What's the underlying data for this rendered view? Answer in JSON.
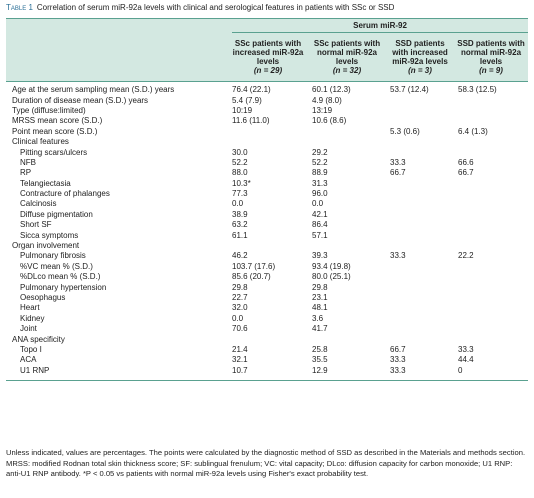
{
  "caption": {
    "label": "Table 1",
    "text": "Correlation of serum miR-92a levels with clinical and serological features in patients with SSc or SSD"
  },
  "table": {
    "group_header": "Serum miR-92",
    "columns": [
      {
        "label": "SSc patients with increased miR-92a levels",
        "n": "(n = 29)"
      },
      {
        "label": "SSc patients with normal miR-92a levels",
        "n": "(n = 32)"
      },
      {
        "label": "SSD patients with increased miR-92a levels",
        "n": "(n = 3)"
      },
      {
        "label": "SSD patients with normal miR-92a levels",
        "n": "(n = 9)"
      }
    ],
    "rows": [
      [
        "Age at the serum sampling mean (S.D.) years",
        "76.4 (22.1)",
        "60.1 (12.3)",
        "53.7 (12.4)",
        "58.3 (12.5)"
      ],
      [
        "Duration of disease mean (S.D.) years",
        "5.4 (7.9)",
        "4.9 (8.0)",
        null,
        null
      ],
      [
        "Type (diffuse:limited)",
        "10:19",
        "13:19",
        null,
        null
      ],
      [
        "MRSS mean score (S.D.)",
        "11.6 (11.0)",
        "10.6 (8.6)",
        null,
        null
      ],
      [
        "Point mean score (S.D.)",
        null,
        null,
        "5.3 (0.6)",
        "6.4 (1.3)"
      ],
      [
        "Clinical features"
      ],
      [
        "Pitting scars/ulcers",
        "30.0",
        "29.2",
        null,
        null
      ],
      [
        "NFB",
        "52.2",
        "52.2",
        "33.3",
        "66.6"
      ],
      [
        "RP",
        "88.0",
        "88.9",
        "66.7",
        "66.7"
      ],
      [
        "Telangiectasia",
        "10.3*",
        "31.3",
        null,
        null
      ],
      [
        "Contracture of phalanges",
        "77.3",
        "96.0",
        null,
        null
      ],
      [
        "Calcinosis",
        "0.0",
        "0.0",
        null,
        null
      ],
      [
        "Diffuse pigmentation",
        "38.9",
        "42.1",
        null,
        null
      ],
      [
        "Short SF",
        "63.2",
        "86.4",
        null,
        null
      ],
      [
        "Sicca symptoms",
        "61.1",
        "57.1",
        null,
        null
      ],
      [
        "Organ involvement"
      ],
      [
        "Pulmonary fibrosis",
        "46.2",
        "39.3",
        "33.3",
        "22.2"
      ],
      [
        "%VC mean % (S.D.)",
        "103.7 (17.6)",
        "93.4 (19.8)",
        null,
        null
      ],
      [
        "%DLco mean % (S.D.)",
        "85.6 (20.7)",
        "80.0 (25.1)",
        null,
        null
      ],
      [
        "Pulmonary hypertension",
        "29.8",
        "29.8",
        null,
        null
      ],
      [
        "Oesophagus",
        "22.7",
        "23.1",
        null,
        null
      ],
      [
        "Heart",
        "32.0",
        "48.1",
        null,
        null
      ],
      [
        "Kidney",
        "0.0",
        "3.6",
        null,
        null
      ],
      [
        "Joint",
        "70.6",
        "41.7",
        null,
        null
      ],
      [
        "ANA specificity"
      ],
      [
        "Topo I",
        "21.4",
        "25.8",
        "66.7",
        "33.3"
      ],
      [
        "ACA",
        "32.1",
        "35.5",
        "33.3",
        "44.4"
      ],
      [
        "U1 RNP",
        "10.7",
        "12.9",
        "33.3",
        "0"
      ]
    ]
  },
  "footnote": "Unless indicated, values are percentages. The points were calculated by the diagnostic method of SSD as described in the Materials and methods section. MRSS: modified Rodnan total skin thickness score; SF: sublingual frenulum; VC: vital capacity; DLco: diffusion capacity for carbon monoxide; U1 RNP: anti-U1 RNP antibody. *P < 0.05 vs patients with normal miR-92a levels using Fisher's exact probability test."
}
